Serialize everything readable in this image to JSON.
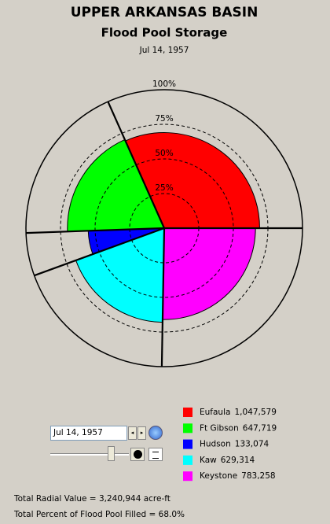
{
  "chart_data": {
    "type": "polar_area",
    "title": "UPPER ARKANSAS BASIN",
    "subtitle": "Flood Pool Storage",
    "date": "Jul 14, 1957",
    "categories": [
      "Eufaula",
      "Ft Gibson",
      "Hudson",
      "Kaw",
      "Keystone"
    ],
    "colors": [
      "#ff0000",
      "#00ff00",
      "#0000ff",
      "#00ffff",
      "#ff00ff"
    ],
    "values": [
      69,
      70,
      55,
      68,
      66
    ],
    "angles": [
      114,
      68,
      18,
      69,
      91
    ],
    "storage": [
      1047579,
      647719,
      133074,
      629314,
      783258
    ],
    "storage_labels": [
      "1,047,579",
      "647,719",
      "133,074",
      "629,314",
      "783,258"
    ],
    "rlim": [
      0,
      100
    ],
    "rticks": [
      {
        "value": 25,
        "label": "25%"
      },
      {
        "value": 50,
        "label": "50%"
      },
      {
        "value": 75,
        "label": "75%"
      },
      {
        "value": 100,
        "label": "100%"
      }
    ],
    "total_radial": "Total Radial Value =  3,240,944 acre-ft",
    "total_percent": "Total Percent of Flood Pool Filled =  68.0%"
  }
}
